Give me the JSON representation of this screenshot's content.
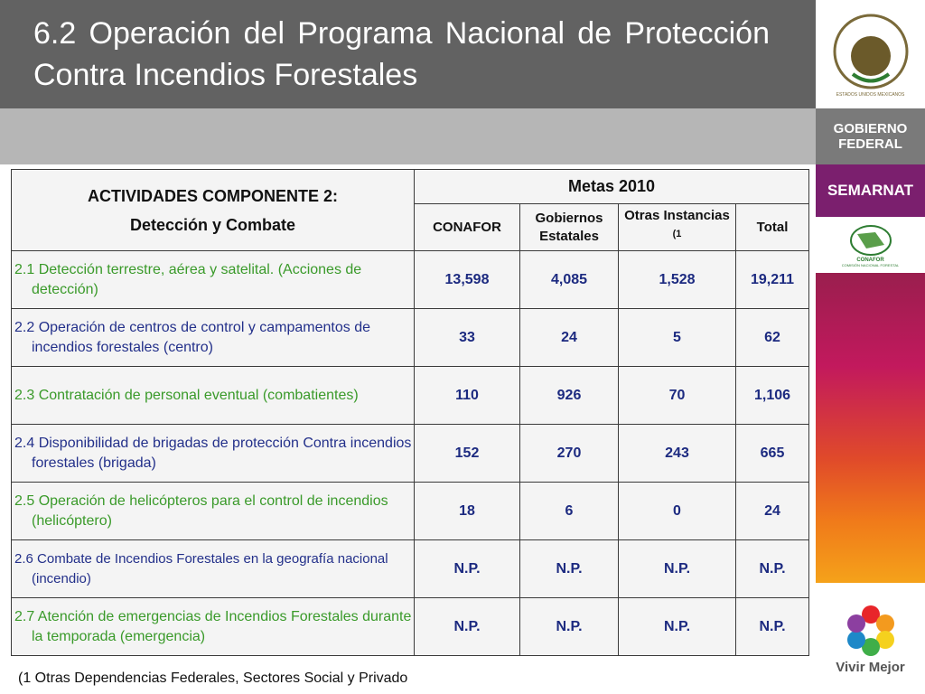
{
  "header": {
    "title": "6.2 Operación del Programa Nacional de Protección Contra Incendios Forestales"
  },
  "sidebar": {
    "seal": "ESTADOS UNIDOS MEXICANOS",
    "gobierno": [
      "GOBIERNO",
      "FEDERAL"
    ],
    "semarnat": "SEMARNAT",
    "conafor": "CONAFOR",
    "conafor_full": "COMISIÓN NACIONAL FORESTAL",
    "vivir": "Vivir Mejor"
  },
  "table": {
    "head_title": [
      "ACTIVIDADES COMPONENTE 2:",
      "Detección y Combate"
    ],
    "metas": "Metas 2010",
    "columns": [
      "CONAFOR",
      "Gobiernos Estatales",
      "Otras Instancias",
      "Total"
    ],
    "column_note": "(1",
    "rows": [
      [
        "2.1 Detección terrestre, aérea y satelital. (Acciones de detección)",
        "13,598",
        "4,085",
        "1,528",
        "19,211"
      ],
      [
        "2.2 Operación de centros de control y campamentos de incendios forestales (centro)",
        "33",
        "24",
        "5",
        "62"
      ],
      [
        "2.3 Contratación de personal eventual (combatientes)",
        "110",
        "926",
        "70",
        "1,106"
      ],
      [
        "2.4 Disponibilidad de brigadas de protección Contra incendios forestales (brigada)",
        "152",
        "270",
        "243",
        "665"
      ],
      [
        "2.5 Operación de helicópteros para el control de incendios (helicóptero)",
        "18",
        "6",
        "0",
        "24"
      ],
      [
        "2.6 Combate de Incendios Forestales en la geografía nacional (incendio)",
        "N.P.",
        "N.P.",
        "N.P.",
        "N.P."
      ],
      [
        "2.7 Atención de emergencias de Incendios Forestales durante la temporada (emergencia)",
        "N.P.",
        "N.P.",
        "N.P.",
        "N.P."
      ]
    ]
  },
  "footnote": "(1  Otras Dependencias Federales, Sectores Social y Privado"
}
